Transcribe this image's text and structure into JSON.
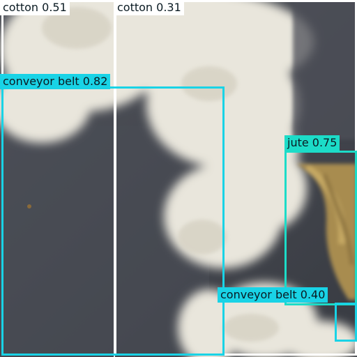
{
  "detections": [
    {
      "label": "cotton 0.51",
      "color": "#ffffff"
    },
    {
      "label": "cotton 0.31",
      "color": "#ffffff"
    },
    {
      "label": "conveyor belt 0.82",
      "color": "#19d3e6"
    },
    {
      "label": "jute 0.75",
      "color": "#1cdcc8"
    },
    {
      "label": "conveyor belt 0.40",
      "color": "#19d3e6"
    }
  ]
}
